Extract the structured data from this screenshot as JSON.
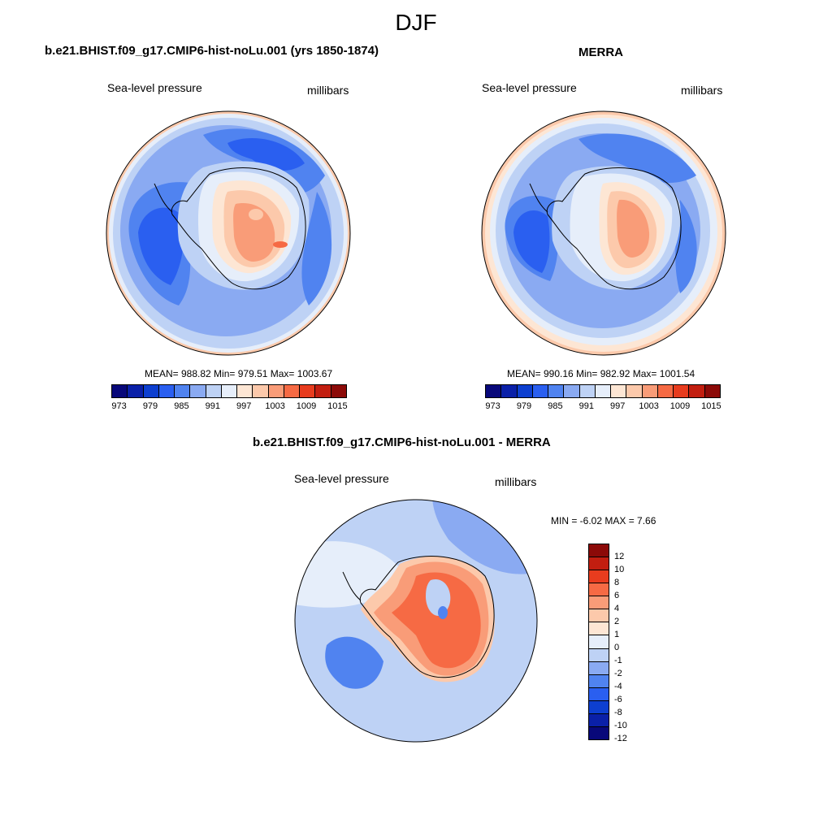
{
  "figure": {
    "suptitle": "DJF"
  },
  "panels": [
    {
      "title": "b.e21.BHIST.f09_g17.CMIP6-hist-noLu.001 (yrs 1850-1874)",
      "left_label": "Sea-level pressure",
      "right_label": "millibars",
      "stats": "MEAN= 988.82  Min= 979.51  Max= 1003.67"
    },
    {
      "title": "MERRA",
      "left_label": "Sea-level pressure",
      "right_label": "millibars",
      "stats": "MEAN= 990.16  Min= 982.92  Max= 1001.54"
    },
    {
      "title": "b.e21.BHIST.f09_g17.CMIP6-hist-noLu.001 - MERRA",
      "left_label": "Sea-level pressure",
      "right_label": "millibars",
      "stats": "MIN =  -6.02 MAX =   7.66"
    }
  ],
  "colorbar_abs": {
    "colors": [
      "#08087a",
      "#0a20a8",
      "#0d3fd0",
      "#2a5ff0",
      "#5083f0",
      "#8aaaf2",
      "#bed2f5",
      "#e6eefa",
      "#fde6d4",
      "#fcc9ab",
      "#f99c78",
      "#f66a44",
      "#e83c1e",
      "#c21e10",
      "#8c0a08"
    ],
    "tick_labels": [
      "973",
      "979",
      "985",
      "991",
      "997",
      "1003",
      "1009",
      "1015"
    ]
  },
  "colorbar_diff": {
    "colors": [
      "#08087a",
      "#0a20a8",
      "#0d3fd0",
      "#2a5ff0",
      "#5083f0",
      "#8aaaf2",
      "#bed2f5",
      "#e6eefa",
      "#fde6d4",
      "#fcc9ab",
      "#f99c78",
      "#f66a44",
      "#e83c1e",
      "#c21e10",
      "#8c0a08"
    ],
    "tick_labels": [
      "-12",
      "-10",
      "-8",
      "-6",
      "-4",
      "-2",
      "-1",
      "0",
      "1",
      "2",
      "4",
      "6",
      "8",
      "10",
      "12"
    ]
  }
}
